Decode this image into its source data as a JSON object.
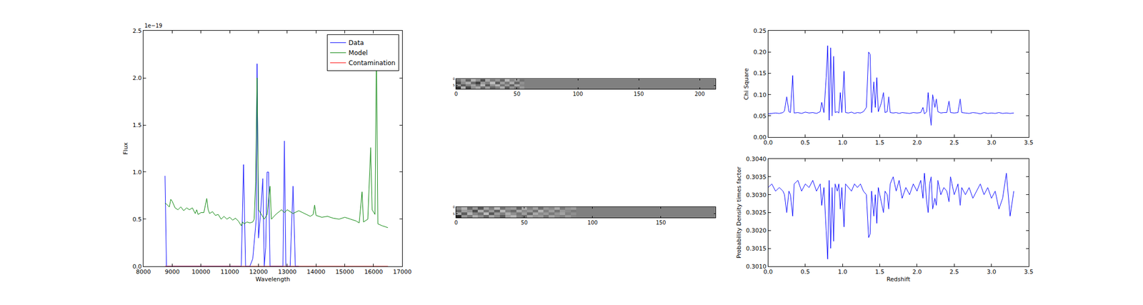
{
  "chart_data": [
    {
      "type": "line",
      "x_label": "Wavelength",
      "y_label": "Flux",
      "annotations": [
        {
          "text": "1e−19"
        }
      ],
      "legend": "upper right",
      "xlim": [
        8000,
        17000
      ],
      "xticks": [
        8000,
        9000,
        10000,
        11000,
        12000,
        13000,
        14000,
        15000,
        16000,
        17000
      ],
      "ylim": [
        0,
        2.5e-19
      ],
      "yticks": [
        {
          "value": 0,
          "label": "0.0"
        },
        {
          "value": 5e-20,
          "label": "0.5"
        },
        {
          "value": 1e-19,
          "label": "1.0"
        },
        {
          "value": 1.5e-19,
          "label": "1.5"
        },
        {
          "value": 2e-19,
          "label": "2.0"
        },
        {
          "value": 2.5e-19,
          "label": "2.5"
        }
      ],
      "series": [
        {
          "name": "Data",
          "color": "#0000ff",
          "x": [
            8750,
            8800,
            9000,
            10000,
            11000,
            11400,
            11480,
            11550,
            11700,
            11800,
            11870,
            11920,
            11950,
            12000,
            12080,
            12150,
            12200,
            12250,
            12300,
            12350,
            12400,
            12600,
            12850,
            12900,
            12950,
            13100,
            13200,
            13280,
            13400
          ],
          "values": [
            9.6e-20,
            0,
            0,
            0,
            0,
            0,
            1.08e-19,
            0,
            0,
            8e-21,
            3.2e-20,
            5e-20,
            2.15e-19,
            3e-20,
            6e-20,
            9.3e-20,
            0,
            2e-20,
            1e-19,
            1e-19,
            0,
            0,
            0,
            1.33e-19,
            0,
            0,
            8.5e-20,
            0,
            0
          ]
        },
        {
          "name": "Model",
          "color": "#008000",
          "x": [
            8750,
            8800,
            8900,
            8950,
            9000,
            9100,
            9200,
            9300,
            9400,
            9500,
            9600,
            9700,
            9800,
            9850,
            9900,
            10000,
            10100,
            10200,
            10250,
            10300,
            10400,
            10500,
            10600,
            10700,
            10800,
            10900,
            11000,
            11100,
            11200,
            11300,
            11400,
            11450,
            11500,
            11600,
            11700,
            11800,
            11850,
            11900,
            11950,
            12000,
            12100,
            12200,
            12300,
            12400,
            12450,
            12600,
            12800,
            12900,
            13000,
            13200,
            13400,
            13600,
            13800,
            13900,
            13950,
            14000,
            14200,
            14400,
            14600,
            14800,
            15000,
            15200,
            15400,
            15500,
            15600,
            15650,
            15800,
            15900,
            15950,
            16050,
            16100,
            16150,
            16300,
            16500
          ],
          "values": [
            6.7e-20,
            6.6e-20,
            6.3e-20,
            7.1e-20,
            6.9e-20,
            6.2e-20,
            6e-20,
            6.3e-20,
            5.9e-20,
            6.2e-20,
            6e-20,
            6.2e-20,
            5.6e-20,
            6e-20,
            5.5e-20,
            5.7e-20,
            5.7e-20,
            7.2e-20,
            6e-20,
            5.6e-20,
            5.8e-20,
            5.4e-20,
            5.5e-20,
            5e-20,
            5.3e-20,
            5e-20,
            5.2e-20,
            4.9e-20,
            5.1e-20,
            4.8e-20,
            4.3e-20,
            4.7e-20,
            4.5e-20,
            4.7e-20,
            4.6e-20,
            4.7e-20,
            5e-20,
            9e-20,
            2e-19,
            6e-20,
            5.5e-20,
            5e-20,
            5.5e-20,
            8.5e-20,
            5e-20,
            5.5e-20,
            6e-20,
            5.7e-20,
            6e-20,
            5.6e-20,
            5.9e-20,
            5.6e-20,
            5.3e-20,
            5.5e-20,
            6.5e-20,
            5.4e-20,
            5.2e-20,
            5.3e-20,
            5.1e-20,
            5e-20,
            5.2e-20,
            5e-20,
            4.8e-20,
            4.6e-20,
            7.9e-20,
            4.7e-20,
            5e-20,
            1.26e-19,
            6e-20,
            5.5e-20,
            2.3e-19,
            4.5e-20,
            4.3e-20,
            4.1e-20
          ]
        },
        {
          "name": "Contamination",
          "color": "#ff0000",
          "x": [
            8750,
            16500
          ],
          "values": [
            0,
            0
          ]
        }
      ]
    },
    {
      "type": "heatmap",
      "color": "gray",
      "zlim": [
        0,
        1
      ],
      "xlim": [
        0,
        213
      ],
      "xticks": [
        0,
        50,
        100,
        150,
        200
      ],
      "ylim": [
        8,
        0
      ],
      "yticks": [
        0,
        5
      ],
      "x_edges": [
        0,
        4,
        8,
        12,
        16,
        20,
        24,
        28,
        32,
        36,
        40,
        44,
        48,
        52,
        56,
        213
      ],
      "y_edges": [
        0,
        2,
        4,
        6,
        8
      ],
      "cells": [
        [
          0.45,
          0.62,
          0.38,
          0.7,
          0.55,
          0.3,
          0.66,
          0.48,
          0.58,
          0.4,
          0.72,
          0.52,
          0.6,
          0.44,
          0.5
        ],
        [
          0.3,
          0.55,
          0.68,
          0.42,
          0.25,
          0.6,
          0.5,
          0.74,
          0.36,
          0.62,
          0.47,
          0.68,
          0.4,
          0.57,
          0.5
        ],
        [
          0.6,
          0.35,
          0.5,
          0.64,
          0.46,
          0.72,
          0.34,
          0.56,
          0.7,
          0.45,
          0.6,
          0.38,
          0.66,
          0.52,
          0.5
        ],
        [
          0.2,
          0.7,
          0.28,
          0.56,
          0.66,
          0.42,
          0.62,
          0.4,
          0.5,
          0.68,
          0.36,
          0.58,
          0.46,
          0.6,
          0.5
        ]
      ]
    },
    {
      "type": "heatmap",
      "color": "gray",
      "zlim": [
        0,
        1
      ],
      "xlim": [
        0,
        190
      ],
      "xticks": [
        0,
        50,
        100,
        150
      ],
      "ylim": [
        8,
        0
      ],
      "yticks": [
        0,
        5
      ],
      "x_edges": [
        0,
        4,
        8,
        12,
        16,
        20,
        24,
        28,
        32,
        36,
        40,
        44,
        48,
        52,
        56,
        60,
        64,
        68,
        72,
        76,
        80,
        84,
        88,
        190
      ],
      "y_edges": [
        0,
        2,
        4,
        6,
        8
      ],
      "cells": [
        [
          0.55,
          0.7,
          0.42,
          0.6,
          0.35,
          0.66,
          0.5,
          0.74,
          0.45,
          0.58,
          0.62,
          0.4,
          0.7,
          0.52,
          0.64,
          0.44,
          0.6,
          0.55,
          0.68,
          0.48,
          0.58,
          0.62,
          0.5
        ],
        [
          0.4,
          0.62,
          0.58,
          0.3,
          0.68,
          0.46,
          0.6,
          0.38,
          0.72,
          0.5,
          0.42,
          0.66,
          0.55,
          0.6,
          0.45,
          0.7,
          0.5,
          0.62,
          0.46,
          0.6,
          0.54,
          0.48,
          0.5
        ],
        [
          0.66,
          0.36,
          0.7,
          0.52,
          0.44,
          0.74,
          0.34,
          0.6,
          0.5,
          0.68,
          0.56,
          0.46,
          0.62,
          0.4,
          0.66,
          0.54,
          0.6,
          0.48,
          0.58,
          0.64,
          0.5,
          0.56,
          0.5
        ],
        [
          0.15,
          0.58,
          0.46,
          0.68,
          0.56,
          0.4,
          0.66,
          0.52,
          0.36,
          0.62,
          0.7,
          0.5,
          0.44,
          0.66,
          0.56,
          0.6,
          0.46,
          0.64,
          0.54,
          0.5,
          0.6,
          0.52,
          0.5
        ]
      ]
    },
    {
      "type": "line",
      "y_label": "Chi Square",
      "xlim": [
        0,
        3.5
      ],
      "xticks": [
        {
          "value": 0,
          "label": "0.0"
        },
        0.5,
        {
          "value": 1,
          "label": "1.0"
        },
        1.5,
        {
          "value": 2,
          "label": "2.0"
        },
        2.5,
        {
          "value": 3,
          "label": "3.0"
        },
        3.5
      ],
      "ylim": [
        0,
        0.25
      ],
      "yticks": [
        {
          "value": 0,
          "label": "0.00"
        },
        0.05,
        {
          "value": 0.1,
          "label": "0.10"
        },
        0.15,
        {
          "value": 0.2,
          "label": "0.20"
        },
        0.25
      ],
      "series": [
        {
          "color": "#0000ff",
          "x": [
            0,
            0.05,
            0.1,
            0.15,
            0.2,
            0.22,
            0.25,
            0.28,
            0.3,
            0.33,
            0.35,
            0.4,
            0.45,
            0.5,
            0.55,
            0.6,
            0.65,
            0.7,
            0.72,
            0.75,
            0.78,
            0.8,
            0.82,
            0.84,
            0.86,
            0.88,
            0.9,
            0.93,
            0.95,
            0.97,
            0.99,
            1.02,
            1.04,
            1.08,
            1.12,
            1.16,
            1.2,
            1.24,
            1.28,
            1.32,
            1.35,
            1.37,
            1.39,
            1.42,
            1.44,
            1.46,
            1.48,
            1.52,
            1.55,
            1.57,
            1.6,
            1.62,
            1.64,
            1.68,
            1.72,
            1.76,
            1.8,
            1.85,
            1.9,
            1.95,
            2.0,
            2.05,
            2.08,
            2.1,
            2.13,
            2.15,
            2.17,
            2.19,
            2.21,
            2.24,
            2.26,
            2.28,
            2.32,
            2.36,
            2.4,
            2.43,
            2.45,
            2.5,
            2.55,
            2.58,
            2.6,
            2.65,
            2.7,
            2.75,
            2.8,
            2.85,
            2.9,
            2.95,
            3.0,
            3.05,
            3.1,
            3.15,
            3.2,
            3.25,
            3.3
          ],
          "values": [
            0.055,
            0.056,
            0.057,
            0.056,
            0.058,
            0.062,
            0.095,
            0.06,
            0.058,
            0.145,
            0.057,
            0.058,
            0.056,
            0.059,
            0.057,
            0.058,
            0.056,
            0.06,
            0.082,
            0.058,
            0.14,
            0.215,
            0.04,
            0.21,
            0.05,
            0.19,
            0.058,
            0.06,
            0.057,
            0.105,
            0.058,
            0.155,
            0.058,
            0.057,
            0.059,
            0.056,
            0.058,
            0.057,
            0.06,
            0.07,
            0.2,
            0.195,
            0.058,
            0.13,
            0.07,
            0.14,
            0.06,
            0.08,
            0.105,
            0.058,
            0.06,
            0.095,
            0.058,
            0.057,
            0.058,
            0.056,
            0.058,
            0.057,
            0.056,
            0.058,
            0.057,
            0.058,
            0.07,
            0.055,
            0.06,
            0.105,
            0.06,
            0.028,
            0.1,
            0.07,
            0.09,
            0.06,
            0.057,
            0.058,
            0.058,
            0.085,
            0.058,
            0.057,
            0.058,
            0.09,
            0.058,
            0.057,
            0.056,
            0.058,
            0.057,
            0.055,
            0.058,
            0.056,
            0.057,
            0.056,
            0.058,
            0.056,
            0.057,
            0.056,
            0.057
          ]
        }
      ]
    },
    {
      "type": "line",
      "x_label": "Redshift",
      "y_label": "Probability Density times factor",
      "xlim": [
        0,
        3.5
      ],
      "xticks": [
        {
          "value": 0,
          "label": "0.0"
        },
        0.5,
        {
          "value": 1,
          "label": "1.0"
        },
        1.5,
        {
          "value": 2,
          "label": "2.0"
        },
        2.5,
        {
          "value": 3,
          "label": "3.0"
        },
        3.5
      ],
      "ylim": [
        0.301,
        0.304
      ],
      "yticks": [
        {
          "value": 0.301,
          "label": "0.3010"
        },
        {
          "value": 0.3015,
          "label": "0.3015"
        },
        {
          "value": 0.302,
          "label": "0.3020"
        },
        {
          "value": 0.3025,
          "label": "0.3025"
        },
        {
          "value": 0.303,
          "label": "0.3030"
        },
        {
          "value": 0.3035,
          "label": "0.3035"
        },
        {
          "value": 0.304,
          "label": "0.3040"
        }
      ],
      "series": [
        {
          "color": "#0000ff",
          "x": [
            0,
            0.05,
            0.1,
            0.15,
            0.2,
            0.22,
            0.25,
            0.28,
            0.3,
            0.33,
            0.35,
            0.4,
            0.45,
            0.5,
            0.55,
            0.6,
            0.65,
            0.7,
            0.72,
            0.75,
            0.78,
            0.8,
            0.82,
            0.84,
            0.86,
            0.88,
            0.9,
            0.93,
            0.95,
            0.97,
            0.99,
            1.02,
            1.04,
            1.08,
            1.12,
            1.16,
            1.2,
            1.24,
            1.28,
            1.32,
            1.35,
            1.37,
            1.39,
            1.42,
            1.44,
            1.46,
            1.48,
            1.52,
            1.55,
            1.57,
            1.6,
            1.62,
            1.64,
            1.68,
            1.72,
            1.76,
            1.8,
            1.85,
            1.9,
            1.95,
            2.0,
            2.05,
            2.08,
            2.1,
            2.13,
            2.15,
            2.17,
            2.19,
            2.21,
            2.24,
            2.26,
            2.28,
            2.32,
            2.36,
            2.4,
            2.43,
            2.45,
            2.5,
            2.55,
            2.58,
            2.6,
            2.65,
            2.7,
            2.75,
            2.8,
            2.85,
            2.9,
            2.95,
            3.0,
            3.05,
            3.1,
            3.15,
            3.2,
            3.25,
            3.3
          ],
          "values": [
            0.3032,
            0.3033,
            0.3031,
            0.3032,
            0.3031,
            0.303,
            0.3025,
            0.3031,
            0.303,
            0.3024,
            0.3033,
            0.3034,
            0.3031,
            0.3033,
            0.3032,
            0.3034,
            0.3031,
            0.3033,
            0.3027,
            0.3032,
            0.302,
            0.3012,
            0.3034,
            0.3015,
            0.3032,
            0.3017,
            0.3033,
            0.3031,
            0.3033,
            0.3026,
            0.3032,
            0.3021,
            0.3033,
            0.3032,
            0.3031,
            0.3033,
            0.3032,
            0.3033,
            0.3031,
            0.303,
            0.3018,
            0.3019,
            0.3031,
            0.3024,
            0.303,
            0.3022,
            0.3032,
            0.3028,
            0.3025,
            0.3031,
            0.303,
            0.3026,
            0.3033,
            0.3035,
            0.3031,
            0.3034,
            0.3029,
            0.3032,
            0.303,
            0.3033,
            0.3031,
            0.3034,
            0.3029,
            0.3036,
            0.3028,
            0.3025,
            0.3033,
            0.3035,
            0.3026,
            0.3029,
            0.3027,
            0.3034,
            0.303,
            0.3032,
            0.3031,
            0.3028,
            0.3035,
            0.303,
            0.3033,
            0.3027,
            0.3032,
            0.303,
            0.3032,
            0.3029,
            0.3031,
            0.3033,
            0.303,
            0.3032,
            0.3029,
            0.3031,
            0.3026,
            0.3029,
            0.3036,
            0.3024,
            0.3031
          ]
        }
      ]
    }
  ]
}
